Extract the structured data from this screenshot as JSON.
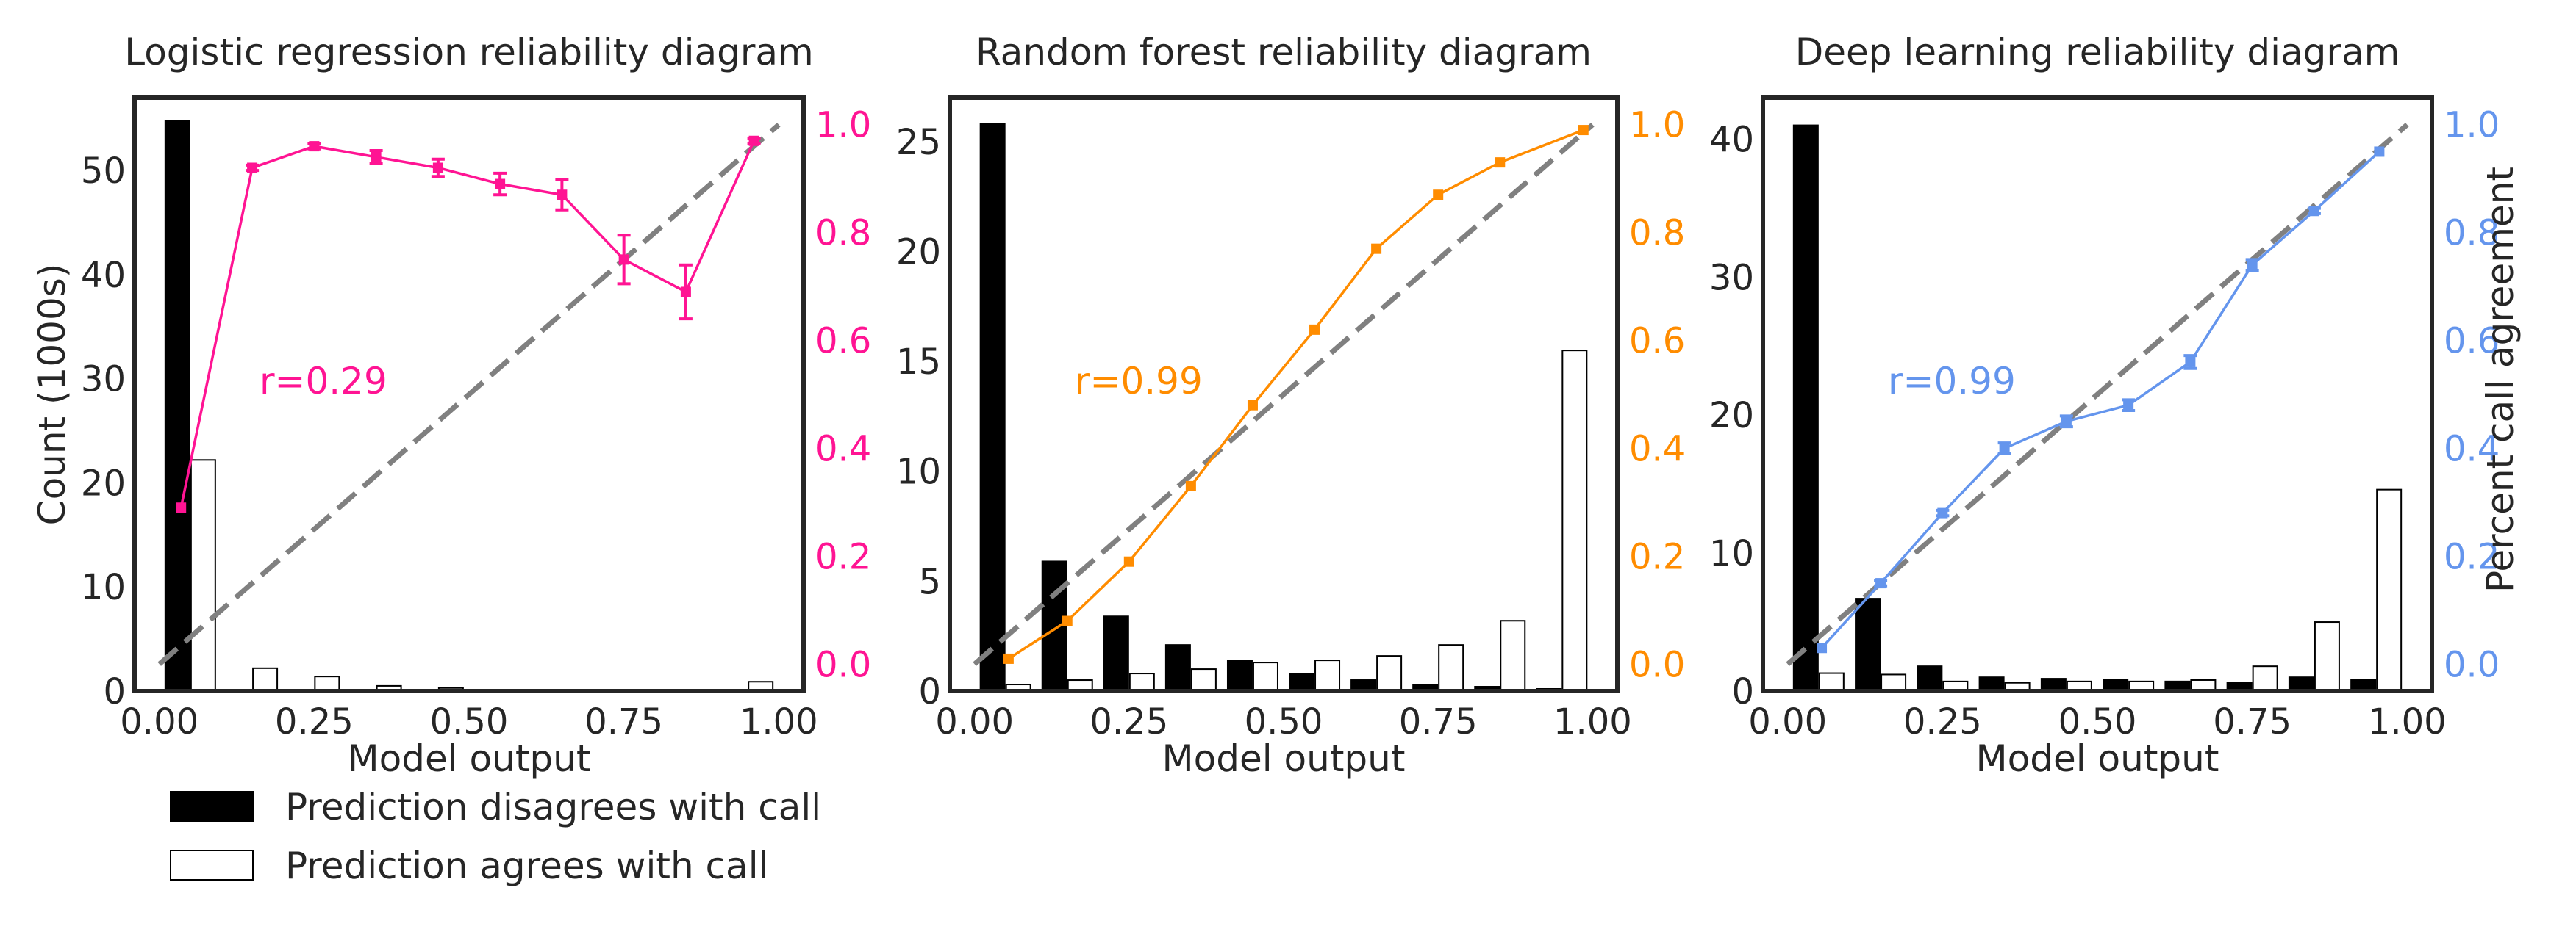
{
  "colors": {
    "disagree_bar": "#000000",
    "agree_bar": "#ffffff",
    "diagonal": "#808080",
    "frame": "#262626"
  },
  "legend": {
    "placement": "bottom-left",
    "entries": [
      {
        "label": "Prediction disagrees with call",
        "fill": "#000000"
      },
      {
        "label": "Prediction agrees with call",
        "fill": "#ffffff"
      }
    ]
  },
  "chart_data": [
    {
      "type": "bar",
      "title": "Logistic regression reliability diagram",
      "xlabel": "Model output",
      "ylabel": "Count (1000s)",
      "ylabel_right": "",
      "xlim": [
        -0.04,
        1.04
      ],
      "ylim": [
        0,
        57
      ],
      "ylim_right": [
        -0.05,
        1.05
      ],
      "xticks": [
        "0.00",
        "0.25",
        "0.50",
        "0.75",
        "1.00"
      ],
      "yticks": [
        "0",
        "10",
        "20",
        "30",
        "40",
        "50"
      ],
      "yticks_right": [
        "0.0",
        "0.2",
        "0.4",
        "0.6",
        "0.8",
        "1.0"
      ],
      "accent_color": "#ff1493",
      "annotation": "r=0.29",
      "bins": [
        0.05,
        0.15,
        0.25,
        0.35,
        0.45,
        0.55,
        0.65,
        0.75,
        0.85,
        0.95
      ],
      "series": [
        {
          "name": "Prediction disagrees with call",
          "values": [
            54.8,
            0,
            0,
            0,
            0,
            0,
            0,
            0,
            0,
            0
          ]
        },
        {
          "name": "Prediction agrees with call",
          "values": [
            22.2,
            2.2,
            1.4,
            0.5,
            0.3,
            0.1,
            0.1,
            0.1,
            0.1,
            0.9
          ]
        }
      ],
      "agreement": {
        "x": [
          0.035,
          0.15,
          0.25,
          0.35,
          0.45,
          0.55,
          0.65,
          0.75,
          0.85,
          0.96
        ],
        "y": [
          0.29,
          0.92,
          0.96,
          0.94,
          0.92,
          0.89,
          0.87,
          0.75,
          0.69,
          0.97
        ],
        "err": [
          0,
          0.005,
          0.005,
          0.012,
          0.016,
          0.02,
          0.028,
          0.045,
          0.05,
          0.005
        ]
      }
    },
    {
      "type": "bar",
      "title": "Random forest reliability diagram",
      "xlabel": "Model output",
      "ylabel": "",
      "ylabel_right": "",
      "xlim": [
        -0.04,
        1.04
      ],
      "ylim": [
        0,
        27
      ],
      "ylim_right": [
        -0.05,
        1.05
      ],
      "xticks": [
        "0.00",
        "0.25",
        "0.50",
        "0.75",
        "1.00"
      ],
      "yticks": [
        "0",
        "5",
        "10",
        "15",
        "20",
        "25"
      ],
      "yticks_right": [
        "0.0",
        "0.2",
        "0.4",
        "0.6",
        "0.8",
        "1.0"
      ],
      "accent_color": "#ff8c00",
      "annotation": "r=0.99",
      "bins": [
        0.05,
        0.15,
        0.25,
        0.35,
        0.45,
        0.55,
        0.65,
        0.75,
        0.85,
        0.95
      ],
      "series": [
        {
          "name": "Prediction disagrees with call",
          "values": [
            25.8,
            5.9,
            3.4,
            2.1,
            1.4,
            0.8,
            0.5,
            0.3,
            0.2,
            0.1
          ]
        },
        {
          "name": "Prediction agrees with call",
          "values": [
            0.3,
            0.5,
            0.8,
            1.0,
            1.3,
            1.4,
            1.6,
            2.1,
            3.2,
            15.5
          ]
        }
      ],
      "agreement": {
        "x": [
          0.055,
          0.15,
          0.25,
          0.35,
          0.45,
          0.55,
          0.65,
          0.75,
          0.85,
          0.985
        ],
        "y": [
          0.01,
          0.08,
          0.19,
          0.33,
          0.48,
          0.62,
          0.77,
          0.87,
          0.93,
          0.99
        ],
        "err": [
          0,
          0,
          0,
          0,
          0,
          0,
          0,
          0,
          0,
          0
        ]
      }
    },
    {
      "type": "bar",
      "title": "Deep learning reliability diagram",
      "xlabel": "Model output",
      "ylabel": "",
      "ylabel_right": "Percent call agreement",
      "xlim": [
        -0.04,
        1.04
      ],
      "ylim": [
        0,
        43
      ],
      "ylim_right": [
        -0.05,
        1.05
      ],
      "xticks": [
        "0.00",
        "0.25",
        "0.50",
        "0.75",
        "1.00"
      ],
      "yticks": [
        "0",
        "10",
        "20",
        "30",
        "40"
      ],
      "yticks_right": [
        "0.0",
        "0.2",
        "0.4",
        "0.6",
        "0.8",
        "1.0"
      ],
      "accent_color": "#6495ed",
      "annotation": "r=0.99",
      "bins": [
        0.05,
        0.15,
        0.25,
        0.35,
        0.45,
        0.55,
        0.65,
        0.75,
        0.85,
        0.95
      ],
      "series": [
        {
          "name": "Prediction disagrees with call",
          "values": [
            41.0,
            6.7,
            1.8,
            1.0,
            0.9,
            0.8,
            0.7,
            0.6,
            1.0,
            0.8
          ]
        },
        {
          "name": "Prediction agrees with call",
          "values": [
            1.3,
            1.2,
            0.7,
            0.6,
            0.7,
            0.7,
            0.8,
            1.8,
            5.0,
            14.6
          ]
        }
      ],
      "agreement": {
        "x": [
          0.055,
          0.15,
          0.25,
          0.35,
          0.45,
          0.55,
          0.65,
          0.75,
          0.85,
          0.955
        ],
        "y": [
          0.03,
          0.15,
          0.28,
          0.4,
          0.45,
          0.48,
          0.56,
          0.74,
          0.84,
          0.95
        ],
        "err": [
          0,
          0.005,
          0.005,
          0.01,
          0.01,
          0.01,
          0.012,
          0.01,
          0.005,
          0
        ]
      }
    }
  ]
}
